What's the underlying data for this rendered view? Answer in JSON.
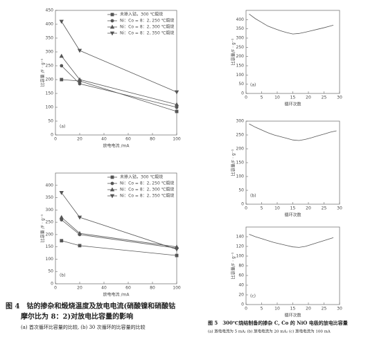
{
  "chart_data": [
    {
      "type": "line",
      "label": "(a)",
      "xlabel": "放电电流 /mA",
      "ylabel": "比容量 /F · g⁻¹",
      "x": [
        5,
        20,
        100
      ],
      "xlim": [
        0,
        100
      ],
      "xticks": [
        0,
        20,
        40,
        60,
        80,
        100
      ],
      "ylim": [
        0,
        450
      ],
      "yticks": [
        0,
        50,
        100,
        150,
        200,
        250,
        300,
        350,
        400,
        450
      ],
      "legend": "top-right",
      "series": [
        {
          "name": "未掺入钴，300 ℃煅烧",
          "color": "#555",
          "marker": "square",
          "values": [
            200,
            195,
            85
          ]
        },
        {
          "name": "Ni：Co = 8：2, 250 ℃煅烧",
          "color": "#555",
          "marker": "circle",
          "values": [
            250,
            185,
            100
          ]
        },
        {
          "name": "Ni：Co = 8：2, 300 ℃煅烧",
          "color": "#555",
          "marker": "triangle",
          "values": [
            285,
            200,
            110
          ]
        },
        {
          "name": "Ni：Co = 8：2, 350 ℃煅烧",
          "color": "#555",
          "marker": "triangle-down",
          "values": [
            410,
            305,
            155
          ]
        }
      ]
    },
    {
      "type": "line",
      "label": "(b)",
      "xlabel": "放电电流 /mA",
      "ylabel": "比容量 /F · g⁻¹",
      "x": [
        5,
        20,
        100
      ],
      "xlim": [
        0,
        100
      ],
      "xticks": [
        0,
        20,
        40,
        60,
        80,
        100
      ],
      "ylim": [
        0,
        450
      ],
      "yticks": [
        0,
        50,
        100,
        150,
        200,
        250,
        300,
        350,
        400
      ],
      "legend": "top-right",
      "series": [
        {
          "name": "未掺入钴，300 ℃煅烧",
          "color": "#555",
          "marker": "square",
          "values": [
            175,
            155,
            115
          ]
        },
        {
          "name": "Ni：Co = 8：2, 250 ℃煅烧",
          "color": "#555",
          "marker": "circle",
          "values": [
            260,
            200,
            145
          ]
        },
        {
          "name": "Ni：Co = 8：2, 300 ℃煅烧",
          "color": "#555",
          "marker": "triangle",
          "values": [
            270,
            205,
            150
          ]
        },
        {
          "name": "Ni：Co = 8：2, 350 ℃煅烧",
          "color": "#555",
          "marker": "triangle-down",
          "values": [
            370,
            270,
            140
          ]
        }
      ]
    },
    {
      "type": "line",
      "label": "(a)",
      "xlabel": "循环次数",
      "ylabel": "比容量/F · g⁻¹",
      "x": [
        1,
        3,
        5,
        7,
        9,
        11,
        13,
        15,
        17,
        19,
        21,
        23,
        25,
        27,
        28
      ],
      "xlim": [
        0,
        30
      ],
      "xticks": [
        0,
        5,
        10,
        15,
        20,
        25,
        30
      ],
      "ylim": [
        0,
        450
      ],
      "yticks": [
        0,
        50,
        100,
        150,
        200,
        250,
        300,
        350,
        400
      ],
      "series": [
        {
          "color": "#555",
          "values": [
            430,
            405,
            385,
            365,
            352,
            340,
            330,
            322,
            325,
            332,
            340,
            348,
            356,
            365,
            370
          ]
        }
      ]
    },
    {
      "type": "line",
      "label": "(b)",
      "xlabel": "循环次数",
      "ylabel": "比容量/F · g⁻¹",
      "x": [
        1,
        3,
        5,
        7,
        9,
        11,
        13,
        15,
        17,
        19,
        21,
        23,
        25,
        27,
        29
      ],
      "xlim": [
        0,
        30
      ],
      "xticks": [
        0,
        5,
        10,
        15,
        20,
        25,
        30
      ],
      "ylim": [
        0,
        300
      ],
      "yticks": [
        0,
        50,
        100,
        150,
        200,
        250,
        300
      ],
      "series": [
        {
          "color": "#555",
          "values": [
            290,
            278,
            268,
            258,
            250,
            244,
            238,
            232,
            230,
            234,
            240,
            247,
            253,
            260,
            265
          ]
        }
      ]
    },
    {
      "type": "line",
      "label": "(c)",
      "xlabel": "循环次数",
      "ylabel": "比容量/F · g⁻¹",
      "x": [
        1,
        3,
        5,
        7,
        9,
        11,
        13,
        15,
        17,
        19,
        21,
        23,
        25,
        27,
        28
      ],
      "xlim": [
        0,
        30
      ],
      "xticks": [
        0,
        5,
        10,
        15,
        20,
        25,
        30
      ],
      "ylim": [
        0,
        160
      ],
      "yticks": [
        0,
        20,
        40,
        60,
        80,
        100,
        120,
        140
      ],
      "series": [
        {
          "color": "#555",
          "values": [
            145,
            140,
            136,
            132,
            128,
            125,
            122,
            119,
            118,
            120,
            124,
            128,
            132,
            136,
            138
          ]
        }
      ]
    }
  ],
  "captions": {
    "fig4_title": "图 4　钴的掺杂和煅烧温度及放电电流(硝酸镍和硝酸钴",
    "fig4_title2": "摩尔比为 8：2)对放电比容量的影响",
    "fig4_sub": "(a) 首次循环比容量的比较, (b) 30 次循环的比容量的比较",
    "fig5_title": "图 5　300℃烧结制备的掺杂 C, Co 的 NiO 电极的放电比容量",
    "fig5_sub": "(a) 放电电流为 5 mA; (b) 放电电流为 20 mA; (c) 放电电流为 100 mA"
  }
}
